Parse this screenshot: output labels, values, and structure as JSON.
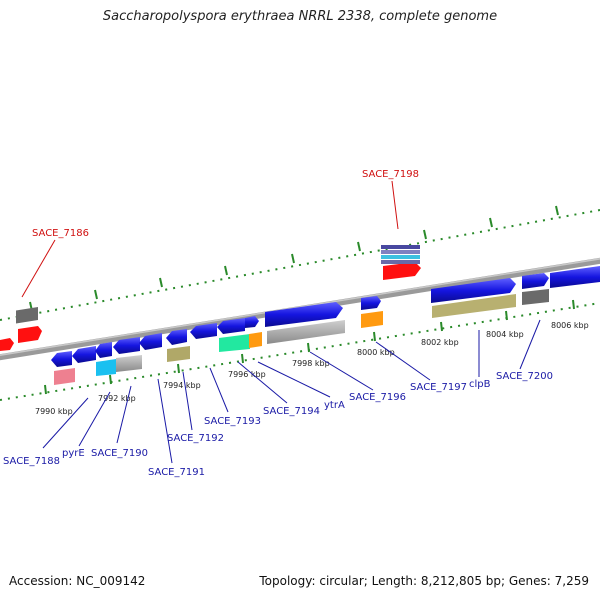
{
  "title": "Saccharopolyspora erythraea NRRL 2338, complete genome",
  "footer": {
    "accession": "Accession: NC_009142",
    "summary": "Topology: circular; Length: 8,212,805 bp; Genes: 7,259"
  },
  "ticks": [
    "7990 kbp",
    "7992 kbp",
    "7994 kbp",
    "7996 kbp",
    "7998 kbp",
    "8000 kbp",
    "8002 kbp",
    "8004 kbp",
    "8006 kbp"
  ],
  "genes": [
    "SACE_7186",
    "SACE_7198",
    "SACE_7188",
    "pyrE",
    "SACE_7190",
    "SACE_7191",
    "SACE_7192",
    "SACE_7193",
    "SACE_7194",
    "ytrA",
    "SACE_7196",
    "SACE_7197",
    "clpB",
    "SACE_7200"
  ],
  "colors": {
    "cds_forward": "#1515e0",
    "rna": "#ff1010",
    "backbone": "#888888",
    "tick": "#1a7a1a",
    "label": "#1a1aa6",
    "label_highlight": "#d01010"
  }
}
